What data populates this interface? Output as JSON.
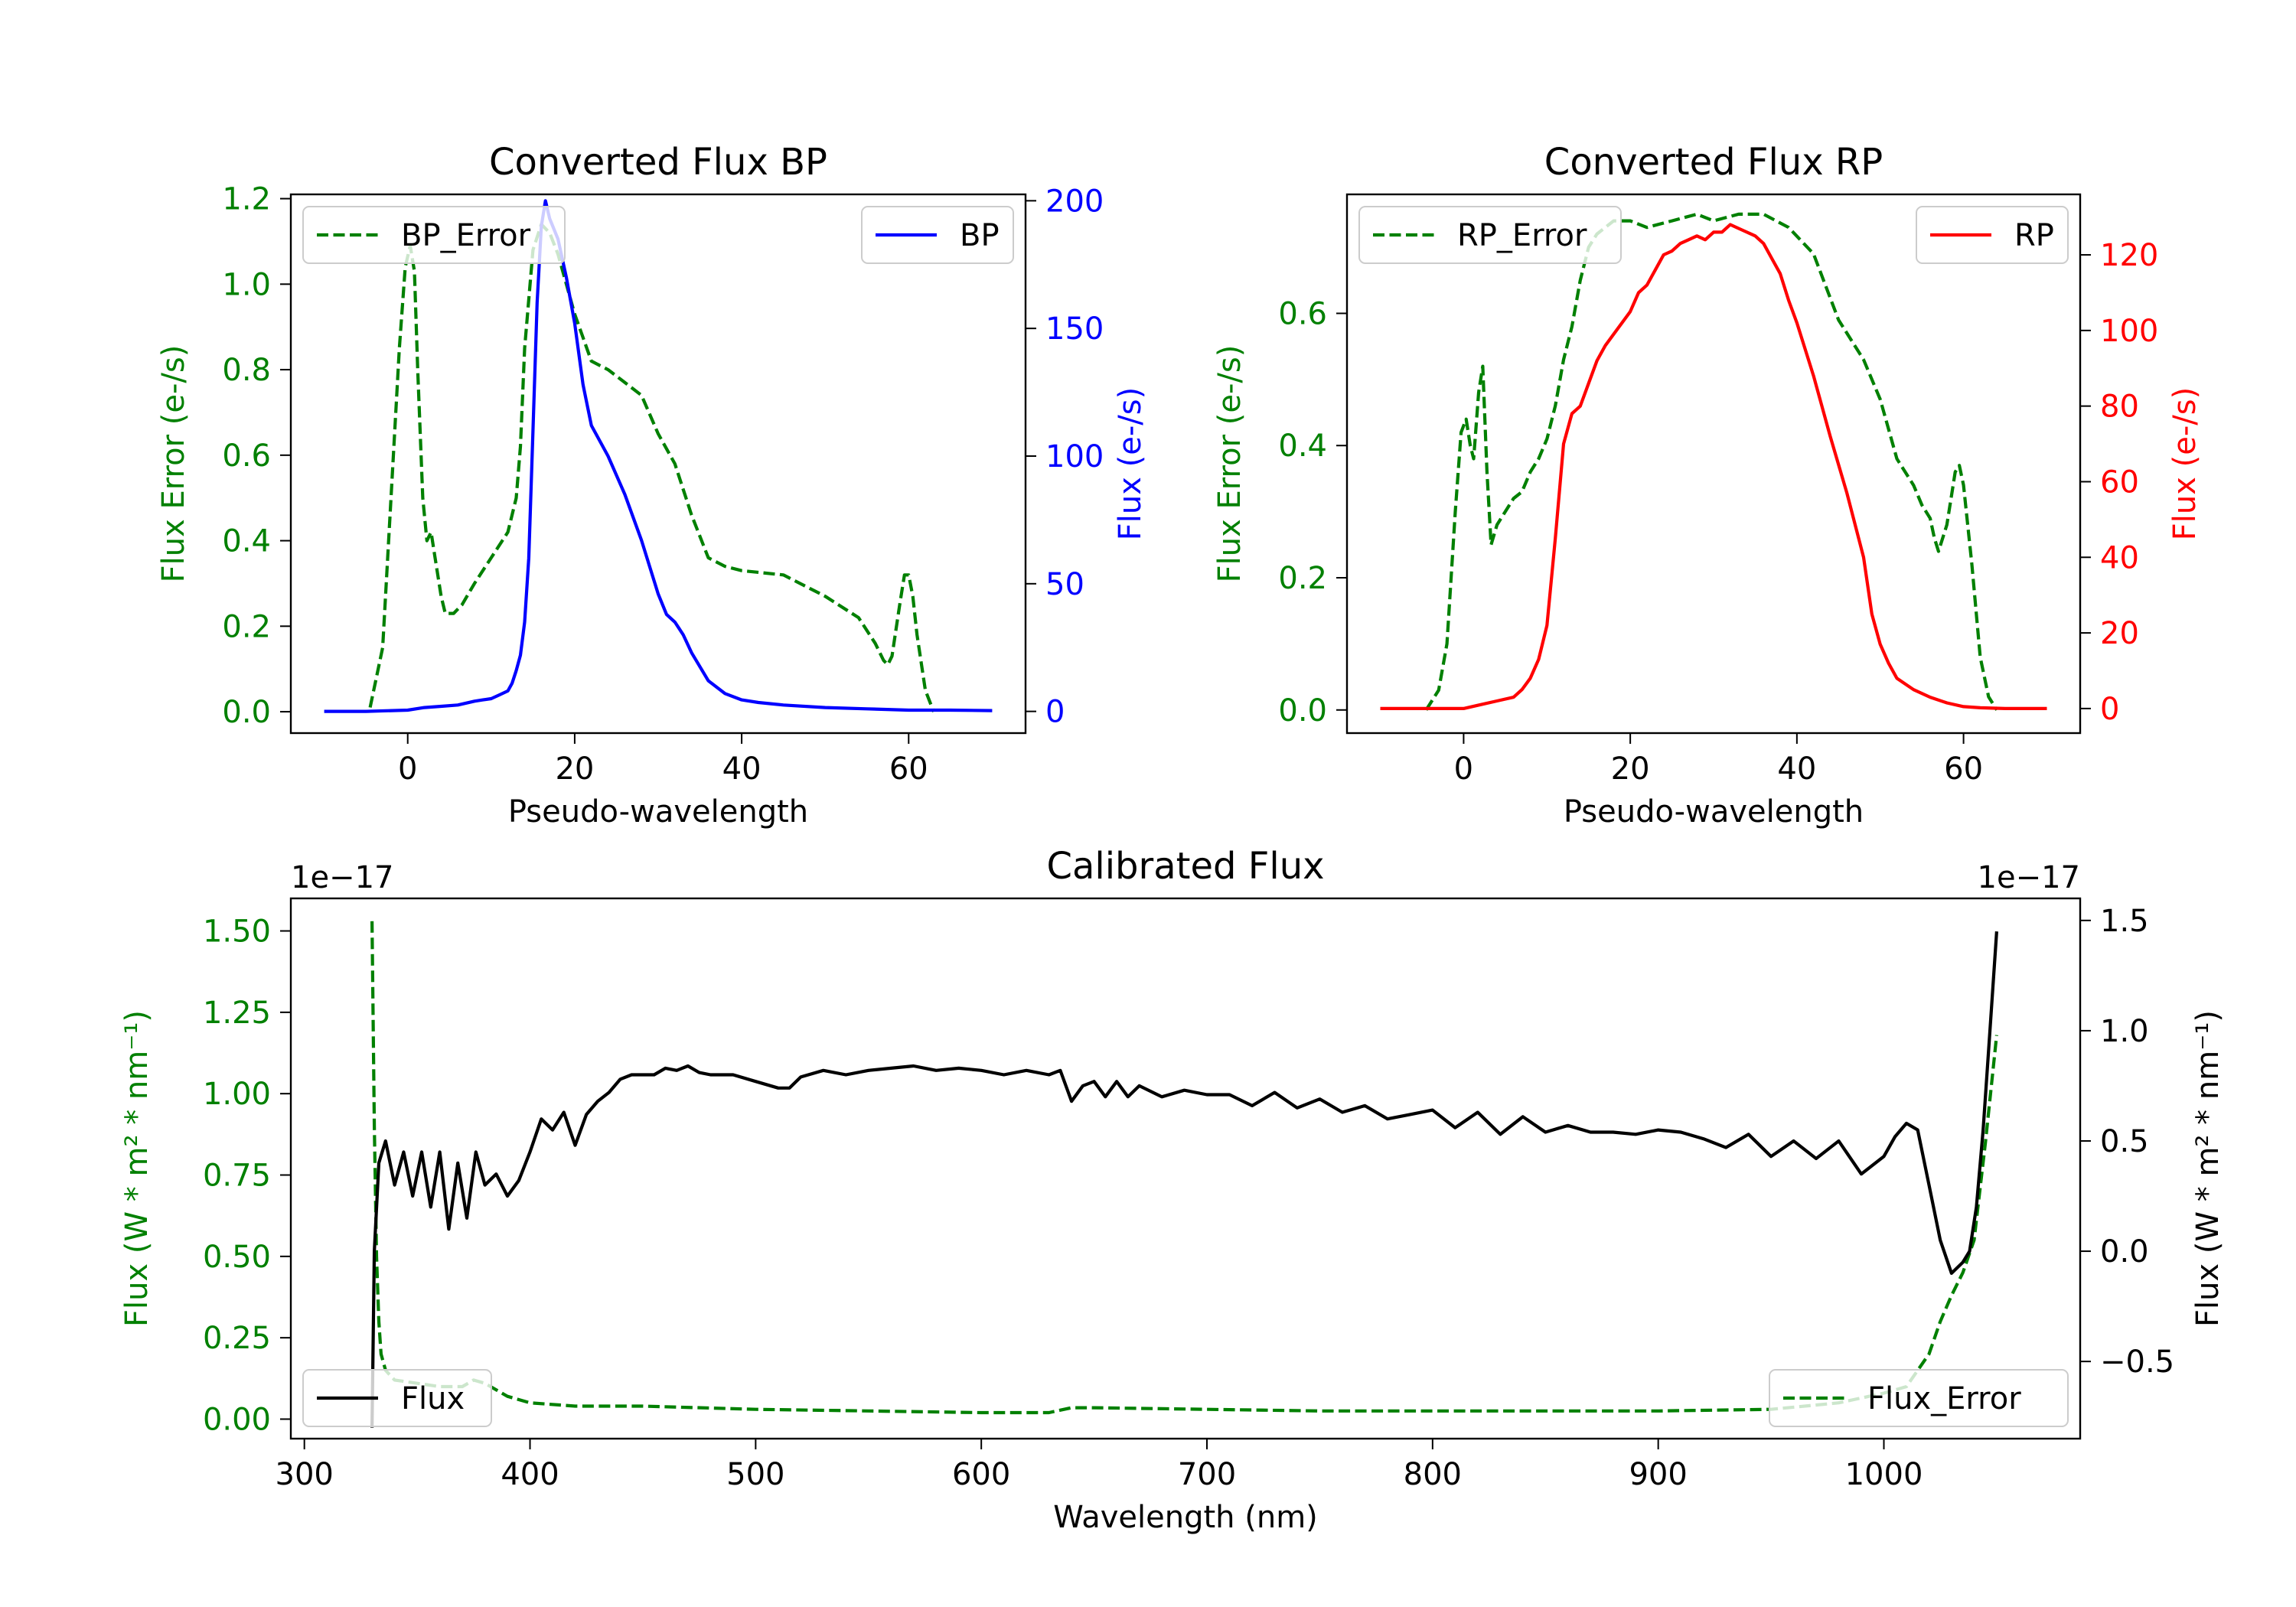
{
  "figure": {
    "background": "#ffffff"
  },
  "chart_data": [
    {
      "type": "line",
      "title": "Converted Flux BP",
      "xlabel": "Pseudo-wavelength",
      "ylabel_left": "Flux Error (e-/s)",
      "ylabel_right": "Flux (e-/s)",
      "xlim": [
        -14,
        74
      ],
      "ylim_left": [
        -0.05,
        1.21
      ],
      "ylim_right": [
        -8.5,
        202.5
      ],
      "xticks": [
        0,
        20,
        40,
        60
      ],
      "yticks_left": [
        0.0,
        0.2,
        0.4,
        0.6,
        0.8,
        1.0,
        1.2
      ],
      "yticks_left_labels": [
        "0.0",
        "0.2",
        "0.4",
        "0.6",
        "0.8",
        "1.0",
        "1.2"
      ],
      "yticks_right": [
        0,
        50,
        100,
        150,
        200
      ],
      "left_axis_color": "#008000",
      "right_axis_color": "#0000ff",
      "legend_left": {
        "label": "BP_Error",
        "placement": "upper left"
      },
      "legend_right": {
        "label": "BP",
        "placement": "upper right"
      },
      "series": [
        {
          "name": "BP_Error",
          "axis": "left",
          "color": "#008000",
          "style": "dashed",
          "x": [
            -4.5,
            -3,
            -2,
            -1,
            -0.3,
            0.3,
            0.8,
            1.2,
            1.8,
            2.3,
            2.8,
            3.2,
            4,
            4.5,
            5.5,
            6.5,
            8,
            10,
            12,
            13,
            13.5,
            14,
            15,
            16,
            17,
            18,
            19,
            20,
            22,
            24,
            26,
            28,
            30,
            32,
            34,
            36,
            38,
            40,
            45,
            50,
            54,
            56,
            57,
            57.5,
            58,
            59,
            59.5,
            60,
            60.5,
            61,
            62,
            63
          ],
          "y": [
            0.01,
            0.15,
            0.5,
            0.85,
            1.04,
            1.09,
            1.03,
            0.8,
            0.5,
            0.4,
            0.42,
            0.37,
            0.27,
            0.23,
            0.23,
            0.25,
            0.3,
            0.36,
            0.42,
            0.5,
            0.62,
            0.85,
            1.08,
            1.14,
            1.12,
            1.07,
            1.0,
            0.93,
            0.82,
            0.8,
            0.77,
            0.74,
            0.65,
            0.58,
            0.46,
            0.36,
            0.34,
            0.33,
            0.32,
            0.27,
            0.22,
            0.16,
            0.12,
            0.11,
            0.13,
            0.26,
            0.32,
            0.32,
            0.27,
            0.18,
            0.05,
            0.0
          ]
        },
        {
          "name": "BP",
          "axis": "right",
          "color": "#0000ff",
          "style": "solid",
          "x": [
            -10,
            -5,
            0,
            2,
            4,
            6,
            8,
            9,
            10,
            11,
            12,
            12.5,
            13,
            13.5,
            14,
            14.5,
            15,
            15.5,
            16,
            16.5,
            17,
            18,
            19,
            20,
            21,
            22,
            24,
            26,
            28,
            30,
            31,
            32,
            33,
            34,
            36,
            38,
            40,
            42,
            45,
            50,
            55,
            60,
            65,
            70
          ],
          "y": [
            0,
            0,
            0.5,
            1.5,
            2,
            2.5,
            4,
            4.5,
            5,
            6.5,
            8,
            11,
            16,
            22,
            35,
            60,
            110,
            160,
            190,
            200,
            193,
            185,
            170,
            152,
            128,
            112,
            100,
            85,
            67,
            46,
            38,
            35,
            30,
            23,
            12,
            7,
            4.5,
            3.5,
            2.5,
            1.5,
            1,
            0.5,
            0.5,
            0.3
          ]
        }
      ]
    },
    {
      "type": "line",
      "title": "Converted Flux RP",
      "xlabel": "Pseudo-wavelength",
      "ylabel_left": "Flux Error (e-/s)",
      "ylabel_right": "Flux (e-/s)",
      "xlim": [
        -14,
        74
      ],
      "ylim_left": [
        -0.035,
        0.78
      ],
      "ylim_right": [
        -6.5,
        136
      ],
      "xticks": [
        0,
        20,
        40,
        60
      ],
      "yticks_left": [
        0.0,
        0.2,
        0.4,
        0.6
      ],
      "yticks_left_labels": [
        "0.0",
        "0.2",
        "0.4",
        "0.6"
      ],
      "yticks_right": [
        0,
        20,
        40,
        60,
        80,
        100,
        120
      ],
      "left_axis_color": "#008000",
      "right_axis_color": "#ff0000",
      "legend_left": {
        "label": "RP_Error",
        "placement": "upper left"
      },
      "legend_right": {
        "label": "RP",
        "placement": "upper right"
      },
      "series": [
        {
          "name": "RP_Error",
          "axis": "left",
          "color": "#008000",
          "style": "dashed",
          "x": [
            -4.5,
            -3,
            -2,
            -1,
            -0.3,
            0.3,
            0.8,
            1.2,
            1.8,
            2.3,
            2.8,
            3.3,
            4,
            5,
            6,
            7,
            8,
            9,
            10,
            11,
            12,
            13,
            14,
            15,
            16,
            18,
            20,
            22,
            25,
            28,
            30,
            33,
            36,
            39,
            42,
            45,
            48,
            50,
            52,
            54,
            55,
            56,
            56.5,
            57,
            58,
            58.5,
            59,
            59.5,
            60,
            61,
            62,
            63,
            64
          ],
          "y": [
            0.0,
            0.03,
            0.1,
            0.3,
            0.42,
            0.44,
            0.4,
            0.38,
            0.48,
            0.52,
            0.36,
            0.25,
            0.28,
            0.3,
            0.32,
            0.33,
            0.36,
            0.38,
            0.41,
            0.46,
            0.53,
            0.58,
            0.65,
            0.7,
            0.72,
            0.74,
            0.74,
            0.73,
            0.74,
            0.75,
            0.74,
            0.75,
            0.75,
            0.73,
            0.69,
            0.59,
            0.53,
            0.47,
            0.38,
            0.34,
            0.31,
            0.29,
            0.26,
            0.24,
            0.28,
            0.32,
            0.36,
            0.37,
            0.34,
            0.22,
            0.08,
            0.02,
            0.0
          ]
        },
        {
          "name": "RP",
          "axis": "right",
          "color": "#ff0000",
          "style": "solid",
          "x": [
            -10,
            -5,
            -2,
            0,
            2,
            4,
            6,
            7,
            8,
            9,
            10,
            11,
            12,
            13,
            13.5,
            14,
            15,
            16,
            17,
            18,
            20,
            21,
            22,
            23,
            24,
            25,
            26,
            27,
            28,
            29,
            30,
            31,
            32,
            33,
            34,
            35,
            36,
            37,
            38,
            39,
            40,
            42,
            44,
            46,
            48,
            49,
            50,
            51,
            52,
            54,
            56,
            58,
            60,
            62,
            65,
            70
          ],
          "y": [
            0,
            0,
            0,
            0,
            1,
            2,
            3,
            5,
            8,
            13,
            22,
            45,
            70,
            78,
            79,
            80,
            86,
            92,
            96,
            99,
            105,
            110,
            112,
            116,
            120,
            121,
            123,
            124,
            125,
            124,
            126,
            126,
            128,
            127,
            126,
            125,
            123,
            119,
            115,
            108,
            102,
            88,
            72,
            57,
            40,
            25,
            17,
            12,
            8,
            5,
            3,
            1.5,
            0.5,
            0.2,
            0,
            0
          ]
        }
      ]
    },
    {
      "type": "line",
      "title": "Calibrated Flux",
      "xlabel": "Wavelength (nm)",
      "ylabel_left": "Flux (W * m² * nm⁻¹)",
      "ylabel_right": "Flux (W * m² * nm⁻¹)",
      "offset_left": "1e−17",
      "offset_right": "1e−17",
      "xlim": [
        294,
        1087
      ],
      "ylim_left": [
        -0.06,
        1.6
      ],
      "ylim_right": [
        -0.85,
        1.6
      ],
      "xticks": [
        300,
        400,
        500,
        600,
        700,
        800,
        900,
        1000
      ],
      "yticks_left": [
        0.0,
        0.25,
        0.5,
        0.75,
        1.0,
        1.25,
        1.5
      ],
      "yticks_left_labels": [
        "0.00",
        "0.25",
        "0.50",
        "0.75",
        "1.00",
        "1.25",
        "1.50"
      ],
      "yticks_right": [
        -0.5,
        0.0,
        0.5,
        1.0,
        1.5
      ],
      "yticks_right_labels": [
        "−0.5",
        "0.0",
        "0.5",
        "1.0",
        "1.5"
      ],
      "left_axis_color": "#008000",
      "right_axis_color": "#000000",
      "legend_left": {
        "label": "Flux",
        "placement": "lower left"
      },
      "legend_right": {
        "label": "Flux_Error",
        "placement": "lower right"
      },
      "series": [
        {
          "name": "Flux_Error",
          "axis": "left",
          "color": "#008000",
          "style": "dashed",
          "x": [
            330,
            331,
            332,
            333,
            334,
            336,
            340,
            350,
            360,
            370,
            375,
            380,
            385,
            390,
            400,
            420,
            450,
            500,
            550,
            600,
            630,
            640,
            650,
            700,
            750,
            800,
            850,
            900,
            950,
            980,
            1000,
            1010,
            1015,
            1020,
            1025,
            1030,
            1035,
            1040,
            1045,
            1050
          ],
          "y": [
            1.53,
            0.9,
            0.5,
            0.3,
            0.2,
            0.15,
            0.12,
            0.11,
            0.1,
            0.1,
            0.12,
            0.11,
            0.09,
            0.07,
            0.05,
            0.04,
            0.04,
            0.03,
            0.025,
            0.02,
            0.02,
            0.035,
            0.035,
            0.03,
            0.025,
            0.025,
            0.025,
            0.025,
            0.03,
            0.05,
            0.08,
            0.1,
            0.15,
            0.2,
            0.3,
            0.38,
            0.45,
            0.55,
            0.85,
            1.18
          ]
        },
        {
          "name": "Flux",
          "axis": "right",
          "color": "#000000",
          "style": "solid",
          "x": [
            330,
            331,
            333,
            336,
            340,
            344,
            348,
            352,
            356,
            360,
            364,
            368,
            372,
            376,
            380,
            385,
            390,
            395,
            400,
            405,
            410,
            415,
            420,
            425,
            430,
            435,
            440,
            445,
            450,
            455,
            460,
            465,
            470,
            475,
            480,
            490,
            500,
            510,
            515,
            520,
            530,
            540,
            550,
            560,
            570,
            580,
            590,
            600,
            610,
            620,
            630,
            635,
            640,
            645,
            650,
            655,
            660,
            665,
            670,
            680,
            690,
            700,
            710,
            720,
            730,
            740,
            750,
            760,
            770,
            780,
            790,
            800,
            810,
            820,
            830,
            840,
            850,
            860,
            870,
            880,
            890,
            900,
            910,
            920,
            930,
            940,
            950,
            960,
            970,
            980,
            990,
            1000,
            1005,
            1010,
            1015,
            1020,
            1025,
            1030,
            1035,
            1038,
            1041,
            1044,
            1047,
            1050
          ],
          "y": [
            -0.8,
            0.0,
            0.4,
            0.5,
            0.3,
            0.45,
            0.25,
            0.45,
            0.2,
            0.45,
            0.1,
            0.4,
            0.15,
            0.45,
            0.3,
            0.35,
            0.25,
            0.32,
            0.45,
            0.6,
            0.55,
            0.63,
            0.48,
            0.62,
            0.68,
            0.72,
            0.78,
            0.8,
            0.8,
            0.8,
            0.83,
            0.82,
            0.84,
            0.81,
            0.8,
            0.8,
            0.77,
            0.74,
            0.74,
            0.79,
            0.82,
            0.8,
            0.82,
            0.83,
            0.84,
            0.82,
            0.83,
            0.82,
            0.8,
            0.82,
            0.8,
            0.82,
            0.68,
            0.75,
            0.77,
            0.7,
            0.77,
            0.7,
            0.75,
            0.7,
            0.73,
            0.71,
            0.71,
            0.66,
            0.72,
            0.65,
            0.69,
            0.63,
            0.66,
            0.6,
            0.62,
            0.64,
            0.56,
            0.63,
            0.53,
            0.61,
            0.54,
            0.57,
            0.54,
            0.54,
            0.53,
            0.55,
            0.54,
            0.51,
            0.47,
            0.53,
            0.43,
            0.5,
            0.42,
            0.5,
            0.35,
            0.43,
            0.52,
            0.58,
            0.55,
            0.3,
            0.05,
            -0.1,
            -0.05,
            0.0,
            0.2,
            0.55,
            1.0,
            1.45
          ]
        }
      ]
    }
  ]
}
